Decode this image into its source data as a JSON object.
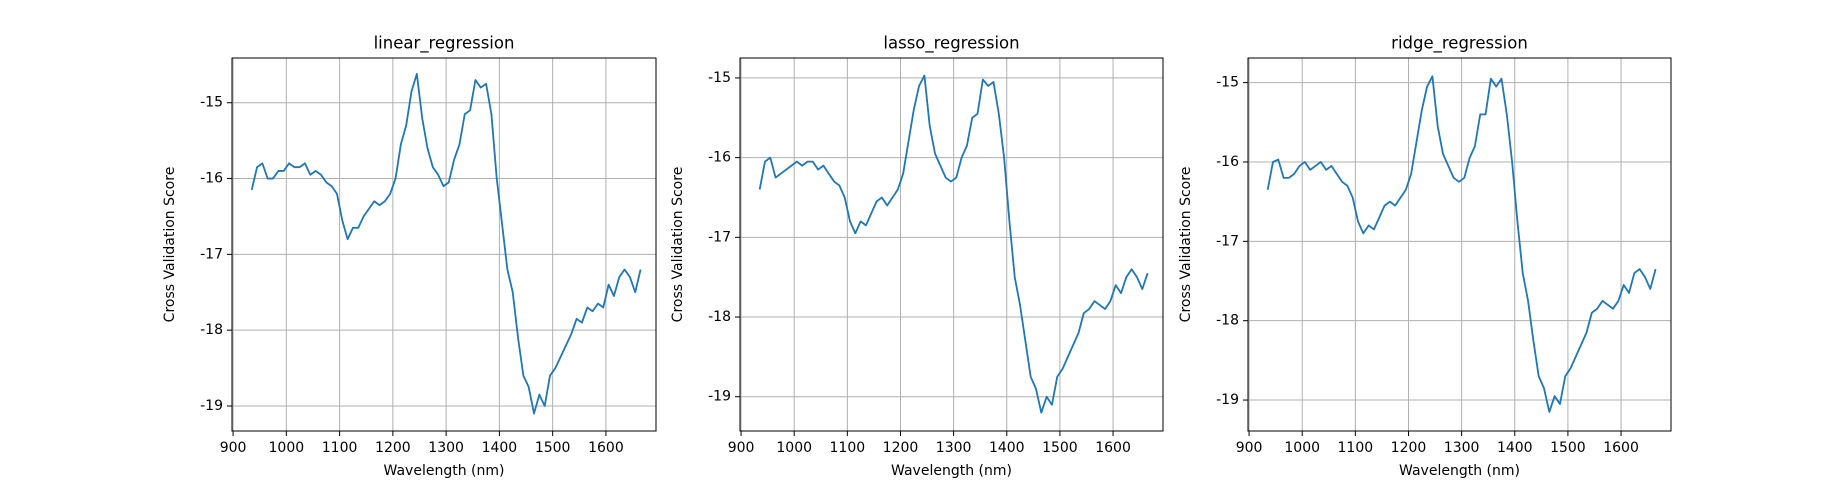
{
  "chart_data": [
    {
      "type": "line",
      "title": "linear_regression",
      "x_label": "Wavelength (nm)",
      "y_label": "Cross Validation Score",
      "x": [
        935,
        945,
        955,
        965,
        975,
        985,
        995,
        1005,
        1015,
        1025,
        1035,
        1045,
        1055,
        1065,
        1075,
        1085,
        1095,
        1105,
        1115,
        1125,
        1135,
        1145,
        1155,
        1165,
        1175,
        1185,
        1195,
        1205,
        1215,
        1225,
        1235,
        1245,
        1255,
        1265,
        1275,
        1285,
        1295,
        1305,
        1315,
        1325,
        1335,
        1345,
        1355,
        1365,
        1375,
        1385,
        1395,
        1405,
        1415,
        1425,
        1435,
        1445,
        1455,
        1465,
        1475,
        1485,
        1495,
        1505,
        1515,
        1525,
        1535,
        1545,
        1555,
        1565,
        1575,
        1585,
        1595,
        1605,
        1615,
        1625,
        1635,
        1645,
        1655,
        1665
      ],
      "series": [
        {
          "color": "#1f77b4",
          "values": [
            -16.15,
            -15.85,
            -15.8,
            -16.0,
            -16.0,
            -15.9,
            -15.9,
            -15.8,
            -15.85,
            -15.85,
            -15.8,
            -15.95,
            -15.9,
            -15.95,
            -16.05,
            -16.1,
            -16.2,
            -16.55,
            -16.8,
            -16.65,
            -16.65,
            -16.5,
            -16.4,
            -16.3,
            -16.35,
            -16.3,
            -16.2,
            -16.0,
            -15.55,
            -15.3,
            -14.85,
            -14.62,
            -15.2,
            -15.6,
            -15.85,
            -15.95,
            -16.1,
            -16.05,
            -15.75,
            -15.55,
            -15.15,
            -15.1,
            -14.7,
            -14.8,
            -14.75,
            -15.15,
            -16.0,
            -16.6,
            -17.2,
            -17.5,
            -18.1,
            -18.6,
            -18.75,
            -19.1,
            -18.85,
            -19.0,
            -18.6,
            -18.5,
            -18.35,
            -18.2,
            -18.05,
            -17.85,
            -17.9,
            -17.7,
            -17.75,
            -17.65,
            -17.7,
            -17.4,
            -17.55,
            -17.3,
            -17.2,
            -17.3,
            -17.5,
            -17.2
          ]
        }
      ],
      "xlim": [
        898,
        1694
      ],
      "xticks": [
        900,
        1000,
        1100,
        1200,
        1300,
        1400,
        1500,
        1600
      ],
      "ylim": [
        -19.33,
        -14.41
      ],
      "yticks": [
        -19,
        -18,
        -17,
        -16,
        -15
      ],
      "grid": true
    },
    {
      "type": "line",
      "title": "lasso_regression",
      "x_label": "Wavelength (nm)",
      "y_label": "Cross Validation Score",
      "x": [
        935,
        945,
        955,
        965,
        975,
        985,
        995,
        1005,
        1015,
        1025,
        1035,
        1045,
        1055,
        1065,
        1075,
        1085,
        1095,
        1105,
        1115,
        1125,
        1135,
        1145,
        1155,
        1165,
        1175,
        1185,
        1195,
        1205,
        1215,
        1225,
        1235,
        1245,
        1255,
        1265,
        1275,
        1285,
        1295,
        1305,
        1315,
        1325,
        1335,
        1345,
        1355,
        1365,
        1375,
        1385,
        1395,
        1405,
        1415,
        1425,
        1435,
        1445,
        1455,
        1465,
        1475,
        1485,
        1495,
        1505,
        1515,
        1525,
        1535,
        1545,
        1555,
        1565,
        1575,
        1585,
        1595,
        1605,
        1615,
        1625,
        1635,
        1645,
        1655,
        1665
      ],
      "series": [
        {
          "color": "#1f77b4",
          "values": [
            -16.4,
            -16.05,
            -16.0,
            -16.25,
            -16.2,
            -16.15,
            -16.1,
            -16.05,
            -16.1,
            -16.05,
            -16.05,
            -16.15,
            -16.1,
            -16.2,
            -16.3,
            -16.35,
            -16.5,
            -16.8,
            -16.95,
            -16.8,
            -16.85,
            -16.7,
            -16.55,
            -16.5,
            -16.6,
            -16.5,
            -16.4,
            -16.2,
            -15.8,
            -15.4,
            -15.1,
            -14.97,
            -15.6,
            -15.95,
            -16.1,
            -16.25,
            -16.3,
            -16.25,
            -16.0,
            -15.85,
            -15.5,
            -15.45,
            -15.02,
            -15.1,
            -15.05,
            -15.45,
            -16.0,
            -16.8,
            -17.5,
            -17.85,
            -18.3,
            -18.75,
            -18.9,
            -19.2,
            -19.0,
            -19.1,
            -18.75,
            -18.65,
            -18.5,
            -18.35,
            -18.2,
            -17.95,
            -17.9,
            -17.8,
            -17.85,
            -17.9,
            -17.8,
            -17.6,
            -17.7,
            -17.5,
            -17.4,
            -17.5,
            -17.65,
            -17.45
          ]
        }
      ],
      "xlim": [
        898,
        1694
      ],
      "xticks": [
        900,
        1000,
        1100,
        1200,
        1300,
        1400,
        1500,
        1600
      ],
      "ylim": [
        -19.43,
        -14.75
      ],
      "yticks": [
        -19,
        -18,
        -17,
        -16,
        -15
      ],
      "grid": true
    },
    {
      "type": "line",
      "title": "ridge_regression",
      "x_label": "Wavelength (nm)",
      "y_label": "Cross Validation Score",
      "x": [
        935,
        945,
        955,
        965,
        975,
        985,
        995,
        1005,
        1015,
        1025,
        1035,
        1045,
        1055,
        1065,
        1075,
        1085,
        1095,
        1105,
        1115,
        1125,
        1135,
        1145,
        1155,
        1165,
        1175,
        1185,
        1195,
        1205,
        1215,
        1225,
        1235,
        1245,
        1255,
        1265,
        1275,
        1285,
        1295,
        1305,
        1315,
        1325,
        1335,
        1345,
        1355,
        1365,
        1375,
        1385,
        1395,
        1405,
        1415,
        1425,
        1435,
        1445,
        1455,
        1465,
        1475,
        1485,
        1495,
        1505,
        1515,
        1525,
        1535,
        1545,
        1555,
        1565,
        1575,
        1585,
        1595,
        1605,
        1615,
        1625,
        1635,
        1645,
        1655,
        1665
      ],
      "series": [
        {
          "color": "#1f77b4",
          "values": [
            -16.35,
            -16.0,
            -15.97,
            -16.2,
            -16.2,
            -16.15,
            -16.05,
            -16.0,
            -16.1,
            -16.05,
            -16.0,
            -16.1,
            -16.05,
            -16.15,
            -16.25,
            -16.3,
            -16.45,
            -16.75,
            -16.9,
            -16.8,
            -16.85,
            -16.7,
            -16.55,
            -16.5,
            -16.55,
            -16.45,
            -16.35,
            -16.15,
            -15.75,
            -15.35,
            -15.05,
            -14.92,
            -15.55,
            -15.9,
            -16.05,
            -16.2,
            -16.25,
            -16.2,
            -15.95,
            -15.8,
            -15.4,
            -15.4,
            -14.95,
            -15.05,
            -14.95,
            -15.4,
            -16.0,
            -16.75,
            -17.4,
            -17.75,
            -18.25,
            -18.7,
            -18.85,
            -19.15,
            -18.95,
            -19.05,
            -18.7,
            -18.6,
            -18.45,
            -18.3,
            -18.15,
            -17.9,
            -17.85,
            -17.75,
            -17.8,
            -17.85,
            -17.75,
            -17.55,
            -17.65,
            -17.4,
            -17.35,
            -17.45,
            -17.6,
            -17.35
          ]
        }
      ],
      "xlim": [
        898,
        1694
      ],
      "xticks": [
        900,
        1000,
        1100,
        1200,
        1300,
        1400,
        1500,
        1600
      ],
      "ylim": [
        -19.39,
        -14.69
      ],
      "yticks": [
        -19,
        -18,
        -17,
        -16,
        -15
      ],
      "grid": true
    }
  ]
}
